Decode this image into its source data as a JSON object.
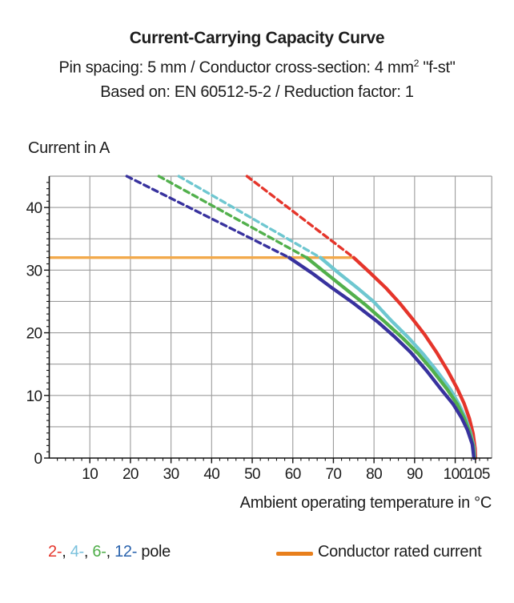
{
  "header": {
    "title": "Current-Carrying Capacity Curve",
    "subtitle_pre": "Pin spacing: 5 mm / Conductor cross-section: 4 mm",
    "subtitle_sup": "2",
    "subtitle_post": " \"f-st\"",
    "subtitle2": "Based on: EN 60512-5-2 / Reduction factor: 1"
  },
  "axes": {
    "y_title": "Current in A",
    "x_title": "Ambient operating temperature in °C"
  },
  "legend": {
    "poles": [
      {
        "text": "2-",
        "color": "#e5352b"
      },
      {
        "text": "4-",
        "color": "#7ac1dd"
      },
      {
        "text": "6-",
        "color": "#4fae49"
      },
      {
        "text": "12-",
        "color": "#2a63ad"
      }
    ],
    "separator": ", ",
    "pole_suffix": " pole",
    "rated": {
      "label": "Conductor rated current",
      "swatch_color": "#e87f1c"
    }
  },
  "chart_data": {
    "type": "line",
    "title": "Current-Carrying Capacity Curve",
    "xlabel": "Ambient operating temperature in °C",
    "ylabel": "Current in A",
    "xlim": [
      0,
      109
    ],
    "ylim": [
      0,
      45
    ],
    "grid": true,
    "x_gridline_step": 10,
    "y_gridline_step": 5,
    "x_major_ticks": [
      10,
      20,
      30,
      40,
      50,
      60,
      70,
      80,
      90,
      100,
      105
    ],
    "y_major_ticks": [
      0,
      10,
      20,
      30,
      40
    ],
    "x_minor_step": 2,
    "y_minor_step": 1,
    "grid_color": "#9c9c9c",
    "axis_color": "#111111",
    "rated_current": {
      "label": "Conductor rated current",
      "value": 32,
      "x_start": 0,
      "x_end": 75,
      "color": "#f2a94b"
    },
    "series": [
      {
        "name": "2-pole",
        "color": "#e5352b",
        "dashed_points": [
          [
            48.7,
            45
          ],
          [
            75,
            32
          ]
        ],
        "solid_points": [
          [
            75,
            32
          ],
          [
            79,
            29.6
          ],
          [
            83,
            27.1
          ],
          [
            86.5,
            24.6
          ],
          [
            89.5,
            22.2
          ],
          [
            92.5,
            19.7
          ],
          [
            95.5,
            16.8
          ],
          [
            98.2,
            13.9
          ],
          [
            100.5,
            11.1
          ],
          [
            102.2,
            8.7
          ],
          [
            103.5,
            6.3
          ],
          [
            104.4,
            3.9
          ],
          [
            104.9,
            1.5
          ],
          [
            105,
            0
          ]
        ]
      },
      {
        "name": "4-pole",
        "color": "#6ec7d0",
        "dashed_points": [
          [
            31.9,
            45
          ],
          [
            66.8,
            32
          ]
        ],
        "solid_points": [
          [
            66.8,
            32
          ],
          [
            71,
            29.7
          ],
          [
            76,
            27.1
          ],
          [
            80,
            24.9
          ],
          [
            84.3,
            21.9
          ],
          [
            88.5,
            19.2
          ],
          [
            92,
            16.7
          ],
          [
            95.5,
            13.9
          ],
          [
            98.8,
            11
          ],
          [
            101,
            8.5
          ],
          [
            102.6,
            6.3
          ],
          [
            103.8,
            4
          ],
          [
            104.6,
            1.8
          ],
          [
            104.8,
            0
          ]
        ]
      },
      {
        "name": "6-pole",
        "color": "#52b04c",
        "dashed_points": [
          [
            27,
            45
          ],
          [
            63.4,
            32
          ]
        ],
        "solid_points": [
          [
            63.4,
            32
          ],
          [
            68,
            29.6
          ],
          [
            73,
            27
          ],
          [
            78,
            24.4
          ],
          [
            82.6,
            21.8
          ],
          [
            87,
            19.2
          ],
          [
            91,
            16.6
          ],
          [
            94.5,
            13.9
          ],
          [
            98,
            11
          ],
          [
            100.5,
            8.6
          ],
          [
            102.2,
            6.4
          ],
          [
            103.5,
            4.2
          ],
          [
            104.4,
            2
          ],
          [
            104.7,
            0
          ]
        ]
      },
      {
        "name": "12-pole",
        "color": "#38329e",
        "dashed_points": [
          [
            19.1,
            45
          ],
          [
            59.1,
            32
          ]
        ],
        "solid_points": [
          [
            59.1,
            32
          ],
          [
            65,
            29.4
          ],
          [
            70,
            27
          ],
          [
            75,
            24.7
          ],
          [
            81,
            21.7
          ],
          [
            85,
            19.4
          ],
          [
            89,
            16.9
          ],
          [
            93,
            13.9
          ],
          [
            96.5,
            11
          ],
          [
            99.5,
            8.6
          ],
          [
            101.5,
            6.5
          ],
          [
            103,
            4.5
          ],
          [
            104.2,
            2.2
          ],
          [
            104.6,
            0
          ]
        ]
      }
    ]
  }
}
